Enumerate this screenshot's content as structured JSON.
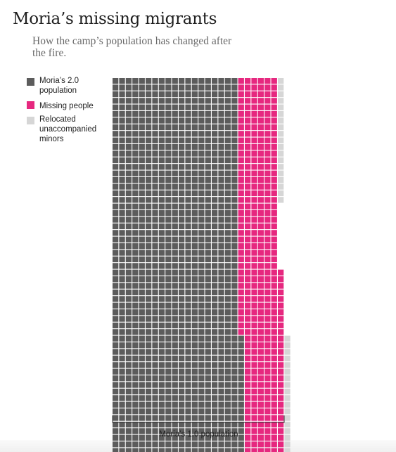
{
  "title": "Moria’s missing migrants",
  "subtitle": "How the camp’s population has changed after the fire.",
  "legend": [
    {
      "label": "Moria’s 2.0 population",
      "color": "#5c5c5c"
    },
    {
      "label": "Missing people",
      "color": "#e6287f"
    },
    {
      "label": "Relocated unaccompanied minors",
      "color": "#d6d6d6"
    }
  ],
  "bracket_label": "Moria’s 1.0 population",
  "chart_data": {
    "type": "waffle",
    "title": "Moria’s missing migrants",
    "subtitle": "How the camp’s population has changed after the fire.",
    "bracket_label": "Moria’s 1.0 population",
    "series": [
      {
        "name": "Moria’s 2.0 population",
        "color": "#5c5c5c"
      },
      {
        "name": "Missing people",
        "color": "#e6287f"
      },
      {
        "name": "Relocated unaccompanied minors",
        "color": "#d6d6d6"
      }
    ],
    "rows": [
      {
        "count": 19,
        "cells": {
          "population": 19,
          "missing": 6,
          "minors": 1
        }
      },
      {
        "count": 10,
        "cells": {
          "population": 19,
          "missing": 6,
          "minors": 0
        }
      },
      {
        "count": 10,
        "cells": {
          "population": 19,
          "missing": 7,
          "minors": 0
        }
      },
      {
        "count": 20,
        "cells": {
          "population": 20,
          "missing": 6,
          "minors": 1
        }
      }
    ]
  }
}
